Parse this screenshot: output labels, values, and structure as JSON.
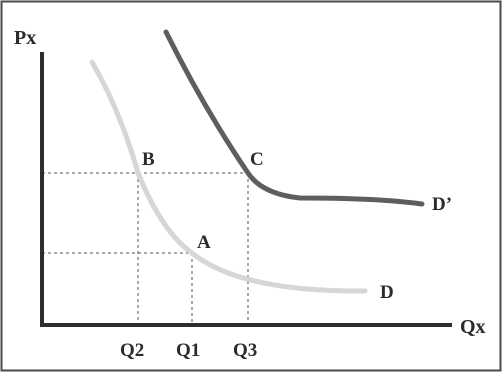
{
  "axes": {
    "y_label": "Px",
    "x_label": "Qx"
  },
  "curves": [
    {
      "id": "D",
      "label": "D",
      "color": "#d6d6d6"
    },
    {
      "id": "D_prime",
      "label": "D’",
      "color": "#5e5e5e"
    }
  ],
  "points": {
    "A": "A",
    "B": "B",
    "C": "C"
  },
  "quantities": {
    "q1": "Q1",
    "q2": "Q2",
    "q3": "Q3"
  },
  "colors": {
    "frame": "#4a4a4a",
    "axis": "#2e2e2e",
    "guide": "#555555",
    "text": "#2b2b2b"
  }
}
